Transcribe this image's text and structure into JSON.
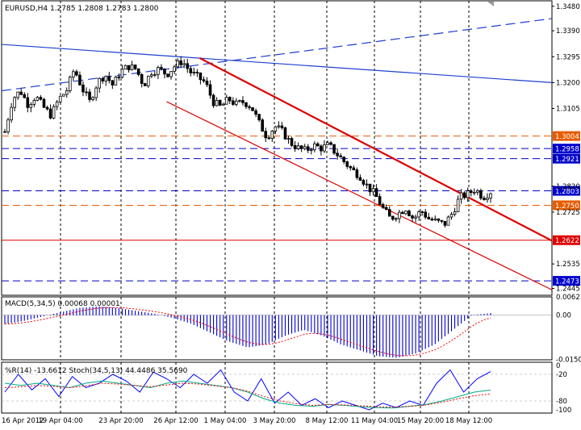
{
  "window": {
    "title": "EURUSD,H4  1.2785 1.2808 1.2783 1.2800"
  },
  "chart_data": [
    {
      "type": "candlestick",
      "title": "EURUSD,H4  1.2785 1.2808 1.2783 1.2800",
      "symbol": "EURUSD",
      "timeframe": "H4",
      "ohlc_last": [
        1.2785,
        1.2808,
        1.2783,
        1.28
      ],
      "ylim": [
        1.242,
        1.35
      ],
      "y_ticks": [
        "1.3480",
        "1.3390",
        "1.3295",
        "1.3200",
        "1.3105",
        "1.2820",
        "1.2725",
        "1.2535",
        "1.2445"
      ],
      "x_ticks": [
        "16 Apr 2012",
        "19 Apr 04:00",
        "23 Apr 20:00",
        "26 Apr 12:00",
        "1 May 04:00",
        "3 May 20:00",
        "8 May 12:00",
        "11 May 04:00",
        "15 May 20:00",
        "18 May 12:00"
      ],
      "close_path": [
        1.302,
        1.314,
        1.317,
        1.312,
        1.315,
        1.311,
        1.308,
        1.314,
        1.317,
        1.325,
        1.318,
        1.313,
        1.32,
        1.323,
        1.319,
        1.324,
        1.326,
        1.325,
        1.319,
        1.324,
        1.325,
        1.323,
        1.326,
        1.328,
        1.324,
        1.322,
        1.32,
        1.313,
        1.311,
        1.314,
        1.312,
        1.313,
        1.311,
        1.305,
        1.3,
        1.304,
        1.302,
        1.298,
        1.296,
        1.295,
        1.297,
        1.296,
        1.297,
        1.294,
        1.291,
        1.288,
        1.286,
        1.282,
        1.279,
        1.274,
        1.27,
        1.272,
        1.274,
        1.27,
        1.273,
        1.27,
        1.269,
        1.268,
        1.272,
        1.278,
        1.279,
        1.281,
        1.278,
        1.28
      ],
      "horizontal_levels": [
        {
          "value": 1.3004,
          "label": "1.3004",
          "style": "dashed",
          "color": "#e65c00"
        },
        {
          "value": 1.2958,
          "label": "1.2958",
          "style": "dashed",
          "color": "#0000cc"
        },
        {
          "value": 1.2921,
          "label": "1.2921",
          "style": "dashed",
          "color": "#0000cc"
        },
        {
          "value": 1.2803,
          "label": "1.2803",
          "style": "dashed",
          "color": "#0000cc"
        },
        {
          "value": 1.275,
          "label": "1.2750",
          "style": "dashed",
          "color": "#e65c00"
        },
        {
          "value": 1.2622,
          "label": "1.2622",
          "style": "solid",
          "color": "#dd0000"
        },
        {
          "value": 1.2473,
          "label": "1.2473",
          "style": "dashed",
          "color": "#0000cc"
        }
      ],
      "trend_lines": [
        {
          "name": "rising-dashed",
          "color": "#1f3fd0",
          "style": "dashed",
          "from": [
            0,
            1.317
          ],
          "to": [
            1,
            1.3435
          ]
        },
        {
          "name": "falling-solid",
          "color": "#1f3fd0",
          "style": "solid",
          "from": [
            0,
            1.334
          ],
          "to": [
            1,
            1.32
          ]
        },
        {
          "name": "channel-upper",
          "color": "#dd0000",
          "style": "solid-thick",
          "from": [
            0.36,
            1.329
          ],
          "to": [
            1,
            1.262
          ]
        },
        {
          "name": "channel-lower",
          "color": "#dd0000",
          "style": "solid",
          "from": [
            0.3,
            1.313
          ],
          "to": [
            1,
            1.244
          ]
        }
      ]
    },
    {
      "type": "bar",
      "title": "MACD(5,34,5) 0.00068 0.00001",
      "ylim": [
        -0.0152,
        0.00621
      ],
      "y_ticks": [
        "0.00621",
        "0.00",
        "-0.01502"
      ],
      "histogram_trend": [
        -0.003,
        -0.002,
        -0.0005,
        0.001,
        0.0025,
        0.003,
        0.0025,
        0.0015,
        0.0005,
        -0.001,
        -0.003,
        -0.006,
        -0.009,
        -0.011,
        -0.01,
        -0.007,
        -0.005,
        -0.007,
        -0.01,
        -0.012,
        -0.014,
        -0.0145,
        -0.013,
        -0.01,
        -0.005,
        0.0,
        0.0007
      ],
      "signal_color": "#ff0000",
      "hist_color": "#0000cc"
    },
    {
      "type": "line",
      "title": "%R(14) -13.6612 Stoch(34,5,13) 44.4486 35.5690",
      "ylim": [
        -100,
        0
      ],
      "y_ticks": [
        "0",
        "-20",
        "-80",
        "-100"
      ],
      "series": [
        {
          "name": "%R(14)",
          "color": "#0000ff",
          "values": [
            -60,
            -20,
            -55,
            -30,
            -70,
            -25,
            -50,
            -40,
            -20,
            -35,
            -60,
            -15,
            -30,
            -50,
            -20,
            -40,
            -10,
            -60,
            -80,
            -30,
            -85,
            -60,
            -90,
            -75,
            -95,
            -80,
            -90,
            -100,
            -85,
            -95,
            -80,
            -90,
            -40,
            -10,
            -60,
            -30,
            -13.66
          ]
        },
        {
          "name": "Stoch(34,5,13)",
          "color": "#00aa88",
          "values": [
            -40,
            -45,
            -40,
            -45,
            -50,
            -40,
            -35,
            -40,
            -45,
            -50,
            -40,
            -35,
            -40,
            -45,
            -50,
            -60,
            -75,
            -85,
            -90,
            -92,
            -88,
            -90,
            -93,
            -95,
            -96,
            -92,
            -88,
            -80,
            -70,
            -60,
            -55.5
          ]
        },
        {
          "name": "signal",
          "color": "#ff0000",
          "values": [
            -50,
            -48,
            -45,
            -47,
            -50,
            -46,
            -40,
            -42,
            -45,
            -48,
            -44,
            -40,
            -42,
            -46,
            -50,
            -58,
            -70,
            -80,
            -86,
            -90,
            -88,
            -89,
            -91,
            -93,
            -94,
            -92,
            -89,
            -83,
            -75,
            -68,
            -64.4
          ]
        }
      ]
    }
  ]
}
